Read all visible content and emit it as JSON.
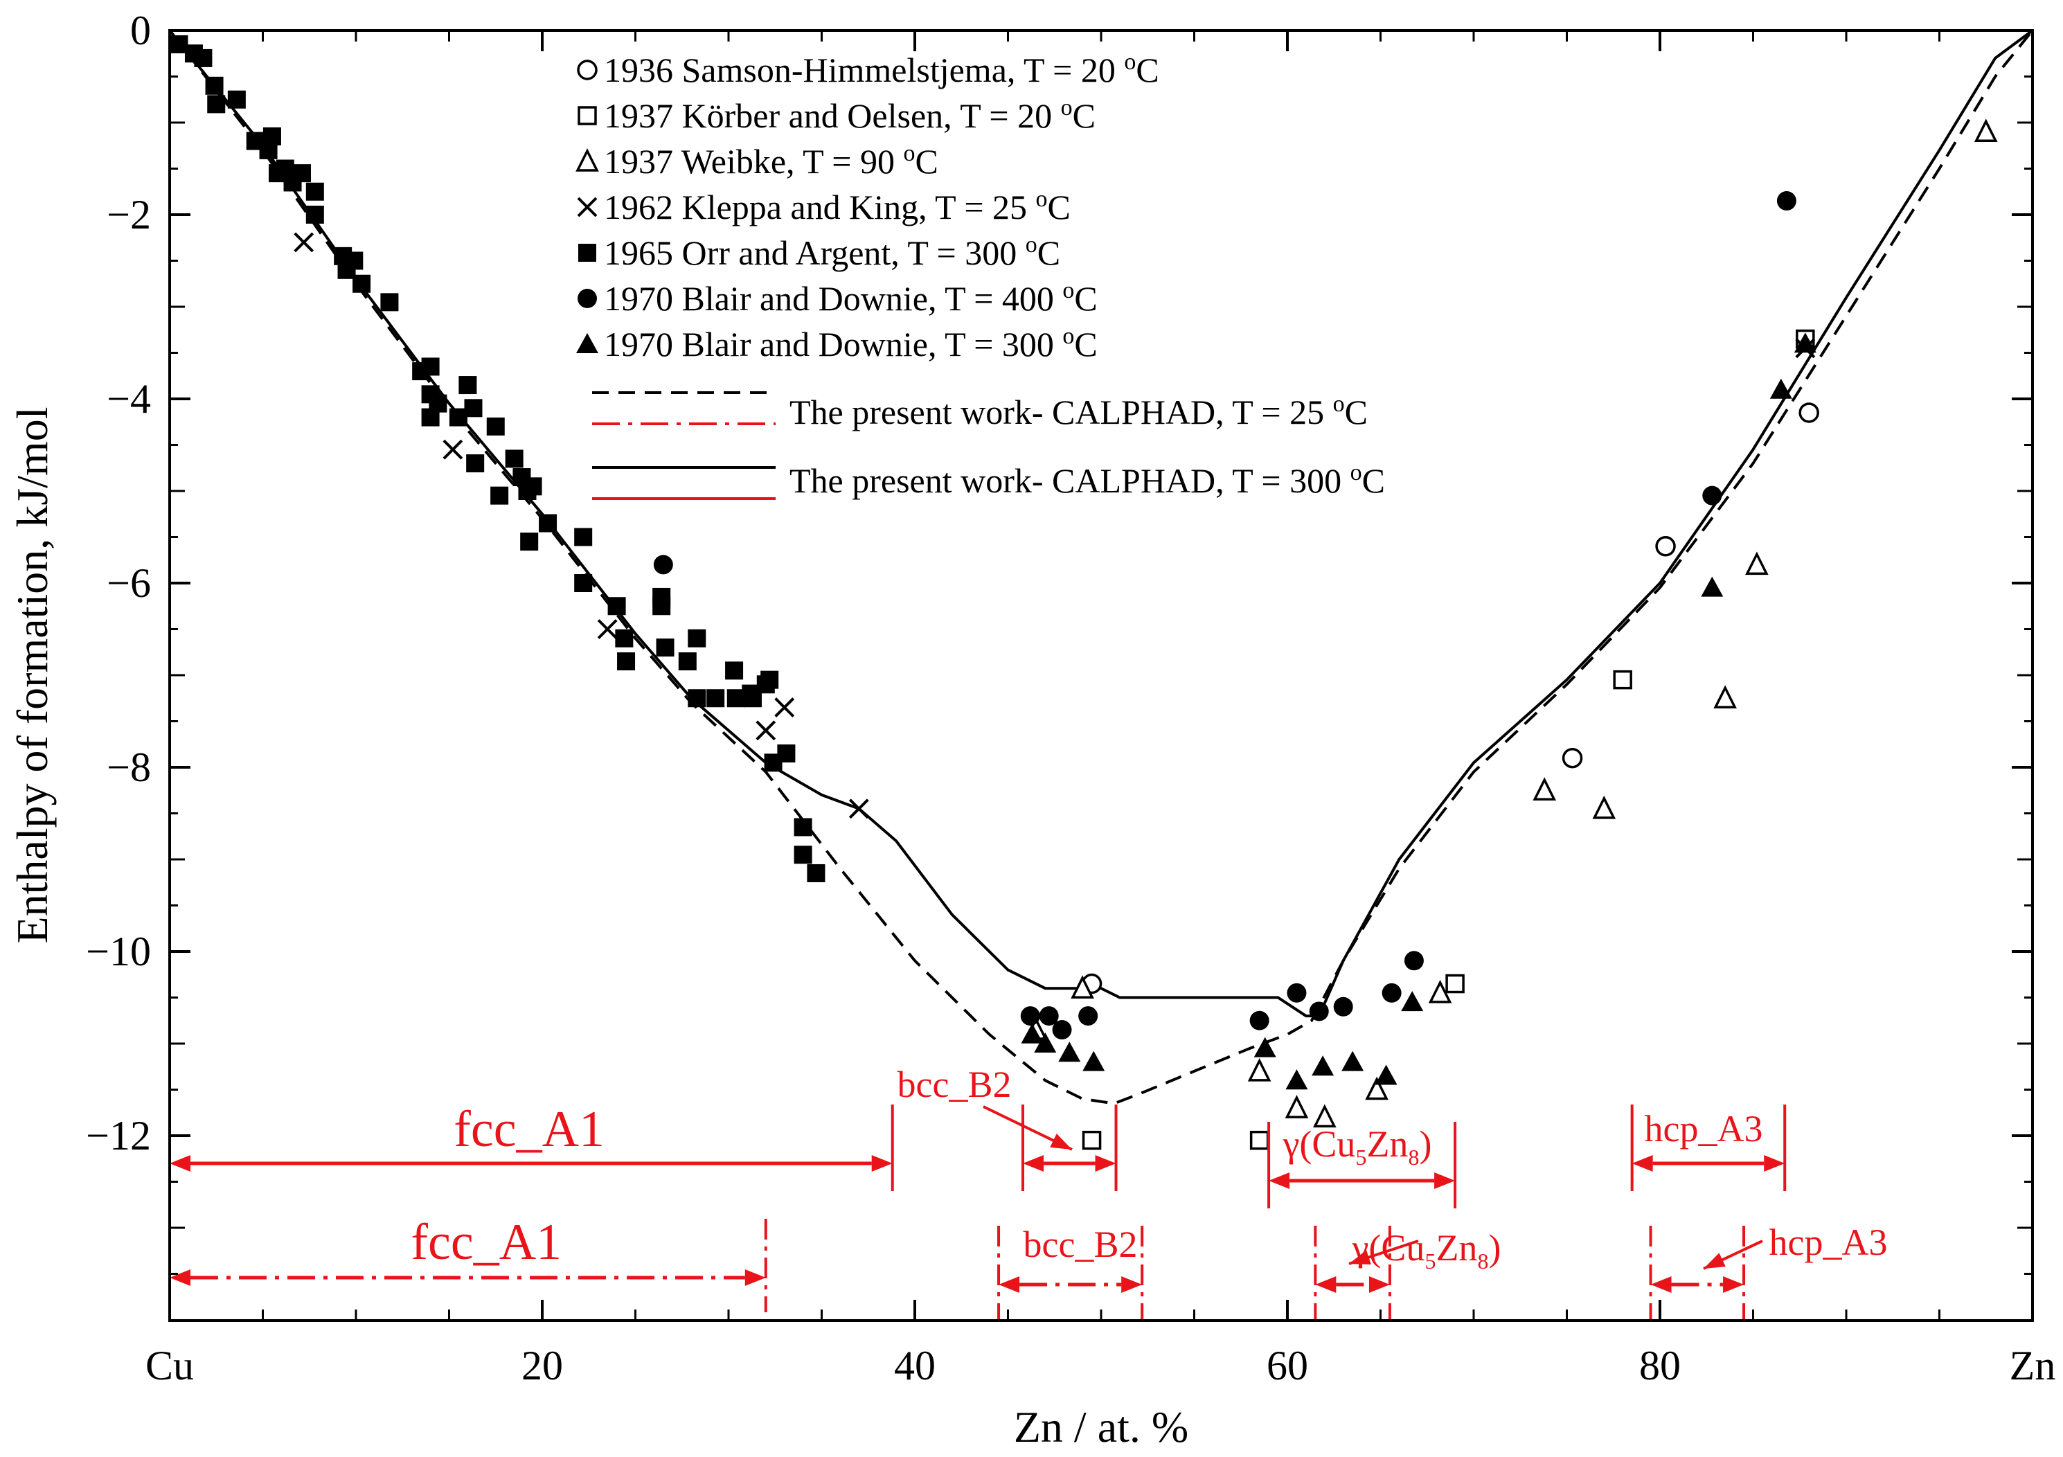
{
  "chart_data": {
    "type": "scatter",
    "title": "",
    "xlabel": "Zn / at. %",
    "ylabel": "Enthalpy of formation, kJ/mol",
    "xlim": [
      0,
      100
    ],
    "ylim": [
      -14,
      0
    ],
    "x_ticks": [
      {
        "v": 0,
        "label": "Cu"
      },
      {
        "v": 20,
        "label": "20"
      },
      {
        "v": 40,
        "label": "40"
      },
      {
        "v": 60,
        "label": "60"
      },
      {
        "v": 80,
        "label": "80"
      },
      {
        "v": 100,
        "label": "Zn"
      }
    ],
    "y_ticks": [
      {
        "v": 0,
        "label": "0"
      },
      {
        "v": -2,
        "label": "−2"
      },
      {
        "v": -4,
        "label": "−4"
      },
      {
        "v": -6,
        "label": "−6"
      },
      {
        "v": -8,
        "label": "−8"
      },
      {
        "v": -10,
        "label": "−10"
      },
      {
        "v": -12,
        "label": "−12"
      }
    ],
    "legend": [
      {
        "marker": "open-circle",
        "label": "1936 Samson-Himmelstjema, T = 20 °C"
      },
      {
        "marker": "open-square",
        "label": "1937 Körber and Oelsen, T = 20 °C"
      },
      {
        "marker": "open-triangle",
        "label": "1937 Weibke, T = 90 °C"
      },
      {
        "marker": "cross",
        "label": "1962 Kleppa and King, T = 25 °C"
      },
      {
        "marker": "filled-square",
        "label": "1965 Orr and  Argent, T = 300 °C"
      },
      {
        "marker": "filled-circle",
        "label": "1970 Blair and Downie, T = 400 °C"
      },
      {
        "marker": "filled-triangle",
        "label": "1970 Blair and Downie, T = 300 °C"
      }
    ],
    "line_legend": [
      {
        "label": "The present work- CALPHAD, T = 25 °C"
      },
      {
        "label": "The present work- CALPHAD, T = 300 °C"
      }
    ],
    "series": [
      {
        "name": "1936 Samson-Himmelstjema, T = 20 °C",
        "marker": "open-circle",
        "points": [
          [
            49.5,
            -10.35
          ],
          [
            75.3,
            -7.9
          ],
          [
            80.3,
            -5.6
          ],
          [
            88,
            -4.15
          ]
        ]
      },
      {
        "name": "1937 Körber and Oelsen, T = 20 °C",
        "marker": "open-square",
        "points": [
          [
            49.5,
            -12.05
          ],
          [
            58.5,
            -12.05
          ],
          [
            69,
            -10.35
          ],
          [
            78,
            -7.05
          ],
          [
            87.8,
            -3.35
          ]
        ]
      },
      {
        "name": "1937 Weibke, T = 90 °C",
        "marker": "open-triangle",
        "points": [
          [
            46.5,
            -10.85
          ],
          [
            49,
            -10.4
          ],
          [
            58.5,
            -11.3
          ],
          [
            60.5,
            -11.7
          ],
          [
            62,
            -11.8
          ],
          [
            64.8,
            -11.5
          ],
          [
            68.2,
            -10.45
          ],
          [
            73.8,
            -8.25
          ],
          [
            77,
            -8.45
          ],
          [
            83.5,
            -7.25
          ],
          [
            85.2,
            -5.8
          ],
          [
            97.5,
            -1.1
          ]
        ]
      },
      {
        "name": "1962 Kleppa and King, T = 25 °C",
        "marker": "cross",
        "points": [
          [
            7.2,
            -2.3
          ],
          [
            15.2,
            -4.55
          ],
          [
            23.5,
            -6.5
          ],
          [
            32,
            -7.6
          ],
          [
            33,
            -7.35
          ],
          [
            37,
            -8.45
          ],
          [
            87.8,
            -3.45
          ]
        ]
      },
      {
        "name": "1965 Orr and  Argent, T = 300 °C",
        "marker": "filled-square",
        "points": [
          [
            0.5,
            -0.15
          ],
          [
            1.3,
            -0.25
          ],
          [
            1.8,
            -0.3
          ],
          [
            2.4,
            -0.6
          ],
          [
            2.5,
            -0.8
          ],
          [
            3.6,
            -0.75
          ],
          [
            4.6,
            -1.2
          ],
          [
            5.3,
            -1.3
          ],
          [
            5.5,
            -1.15
          ],
          [
            5.8,
            -1.55
          ],
          [
            6.2,
            -1.5
          ],
          [
            6.6,
            -1.65
          ],
          [
            7.1,
            -1.55
          ],
          [
            7.8,
            -1.75
          ],
          [
            7.8,
            -2
          ],
          [
            9.3,
            -2.45
          ],
          [
            9.5,
            -2.6
          ],
          [
            9.9,
            -2.5
          ],
          [
            10.3,
            -2.75
          ],
          [
            11.8,
            -2.95
          ],
          [
            13.5,
            -3.7
          ],
          [
            14,
            -3.65
          ],
          [
            14,
            -3.95
          ],
          [
            14,
            -4.2
          ],
          [
            14.4,
            -4.05
          ],
          [
            15.5,
            -4.2
          ],
          [
            16,
            -3.85
          ],
          [
            16.3,
            -4.1
          ],
          [
            16.4,
            -4.7
          ],
          [
            17.5,
            -4.3
          ],
          [
            17.7,
            -5.05
          ],
          [
            18.5,
            -4.65
          ],
          [
            18.9,
            -4.85
          ],
          [
            19.2,
            -5
          ],
          [
            19.5,
            -4.95
          ],
          [
            19.3,
            -5.55
          ],
          [
            20.3,
            -5.35
          ],
          [
            22.2,
            -5.5
          ],
          [
            22.2,
            -6
          ],
          [
            24,
            -6.25
          ],
          [
            24.4,
            -6.6
          ],
          [
            24.5,
            -6.85
          ],
          [
            26.4,
            -6.15
          ],
          [
            26.4,
            -6.25
          ],
          [
            26.6,
            -6.7
          ],
          [
            27.8,
            -6.85
          ],
          [
            28.3,
            -6.6
          ],
          [
            28.3,
            -7.25
          ],
          [
            29.3,
            -7.25
          ],
          [
            30.3,
            -6.95
          ],
          [
            30.4,
            -7.25
          ],
          [
            31.2,
            -7.2
          ],
          [
            31.3,
            -7.25
          ],
          [
            32,
            -7.1
          ],
          [
            32.2,
            -7.05
          ],
          [
            32.4,
            -7.95
          ],
          [
            33.1,
            -7.85
          ],
          [
            34,
            -8.65
          ],
          [
            34,
            -8.95
          ],
          [
            34.7,
            -9.15
          ]
        ]
      },
      {
        "name": "1970 Blair and Downie, T = 400 °C",
        "marker": "filled-circle",
        "points": [
          [
            26.5,
            -5.8
          ],
          [
            46.2,
            -10.7
          ],
          [
            47.2,
            -10.7
          ],
          [
            47.9,
            -10.85
          ],
          [
            49.3,
            -10.7
          ],
          [
            58.5,
            -10.75
          ],
          [
            60.5,
            -10.45
          ],
          [
            61.7,
            -10.65
          ],
          [
            63,
            -10.6
          ],
          [
            65.6,
            -10.45
          ],
          [
            66.8,
            -10.1
          ],
          [
            82.8,
            -5.05
          ],
          [
            86.8,
            -1.85
          ]
        ]
      },
      {
        "name": "1970 Blair and Downie, T = 300 °C",
        "marker": "filled-triangle",
        "points": [
          [
            46.3,
            -10.9
          ],
          [
            47,
            -11
          ],
          [
            48.3,
            -11.1
          ],
          [
            49.6,
            -11.2
          ],
          [
            58.8,
            -11.05
          ],
          [
            60.5,
            -11.4
          ],
          [
            61.9,
            -11.25
          ],
          [
            63.5,
            -11.2
          ],
          [
            65.3,
            -11.35
          ],
          [
            66.7,
            -10.55
          ],
          [
            82.8,
            -6.05
          ],
          [
            86.5,
            -3.9
          ],
          [
            87.8,
            -3.4
          ]
        ]
      },
      {
        "name": "The present work- CALPHAD, T = 25 °C",
        "style": "dashed",
        "points": [
          [
            0,
            0
          ],
          [
            5,
            -1.3
          ],
          [
            10,
            -2.75
          ],
          [
            15,
            -4.1
          ],
          [
            20,
            -5.3
          ],
          [
            25,
            -6.6
          ],
          [
            28,
            -7.3
          ],
          [
            32,
            -8.05
          ],
          [
            36,
            -9.1
          ],
          [
            40,
            -10.1
          ],
          [
            44,
            -10.9
          ],
          [
            47,
            -11.4
          ],
          [
            49,
            -11.6
          ],
          [
            50.7,
            -11.65
          ],
          [
            52,
            -11.55
          ],
          [
            55,
            -11.3
          ],
          [
            58,
            -11.05
          ],
          [
            60,
            -10.9
          ],
          [
            61.3,
            -10.75
          ],
          [
            63,
            -10.1
          ],
          [
            66,
            -9.1
          ],
          [
            70,
            -8.05
          ],
          [
            75,
            -7.1
          ],
          [
            80,
            -6.05
          ],
          [
            85,
            -4.7
          ],
          [
            90,
            -3.1
          ],
          [
            95,
            -1.5
          ],
          [
            98,
            -0.5
          ],
          [
            100,
            0
          ]
        ]
      },
      {
        "name": "The present work- CALPHAD, T = 300 °C",
        "style": "solid",
        "points": [
          [
            0,
            0
          ],
          [
            5,
            -1.25
          ],
          [
            10,
            -2.7
          ],
          [
            15,
            -4.05
          ],
          [
            20,
            -5.25
          ],
          [
            25,
            -6.55
          ],
          [
            28,
            -7.25
          ],
          [
            32,
            -7.95
          ],
          [
            35,
            -8.3
          ],
          [
            37,
            -8.45
          ],
          [
            39,
            -8.8
          ],
          [
            42,
            -9.6
          ],
          [
            45,
            -10.2
          ],
          [
            47,
            -10.4
          ],
          [
            49,
            -10.4
          ],
          [
            50,
            -10.4
          ],
          [
            51,
            -10.5
          ],
          [
            53,
            -10.5
          ],
          [
            58,
            -10.5
          ],
          [
            59.5,
            -10.5
          ],
          [
            61,
            -10.7
          ],
          [
            61.7,
            -10.7
          ],
          [
            63,
            -10.1
          ],
          [
            66,
            -9
          ],
          [
            70,
            -7.95
          ],
          [
            75,
            -7.05
          ],
          [
            80,
            -6
          ],
          [
            85,
            -4.55
          ],
          [
            90,
            -2.9
          ],
          [
            95,
            -1.3
          ],
          [
            98,
            -0.3
          ],
          [
            100,
            0
          ]
        ]
      }
    ],
    "phase_regions": [
      {
        "label": "fcc_A1",
        "temperature": "25 °C",
        "style": "dash-dot",
        "from": 0,
        "to": 32
      },
      {
        "label": "fcc_A1",
        "temperature": "300 °C",
        "style": "solid",
        "from": 0,
        "to": 38.8
      },
      {
        "label": "bcc_B2",
        "temperature": "300 °C",
        "style": "solid",
        "from": 45.8,
        "to": 50.8
      },
      {
        "label": "bcc_B2",
        "temperature": "25 °C",
        "style": "dash-dot",
        "from": 44.5,
        "to": 52.2
      },
      {
        "label": "γ(Cu₅Zn₈)",
        "temperature": "300 °C",
        "style": "solid",
        "from": 59,
        "to": 69
      },
      {
        "label": "γ(Cu₅Zn₈)",
        "temperature": "25 °C",
        "style": "dash-dot",
        "from": 61.5,
        "to": 65.5
      },
      {
        "label": "hcp_A3",
        "temperature": "300 °C",
        "style": "solid",
        "from": 78.5,
        "to": 86.7
      },
      {
        "label": "hcp_A3",
        "temperature": "25 °C",
        "style": "dash-dot",
        "from": 79.5,
        "to": 84.5
      }
    ],
    "colors": {
      "data": "#000000",
      "phase": "#e8141a"
    }
  }
}
